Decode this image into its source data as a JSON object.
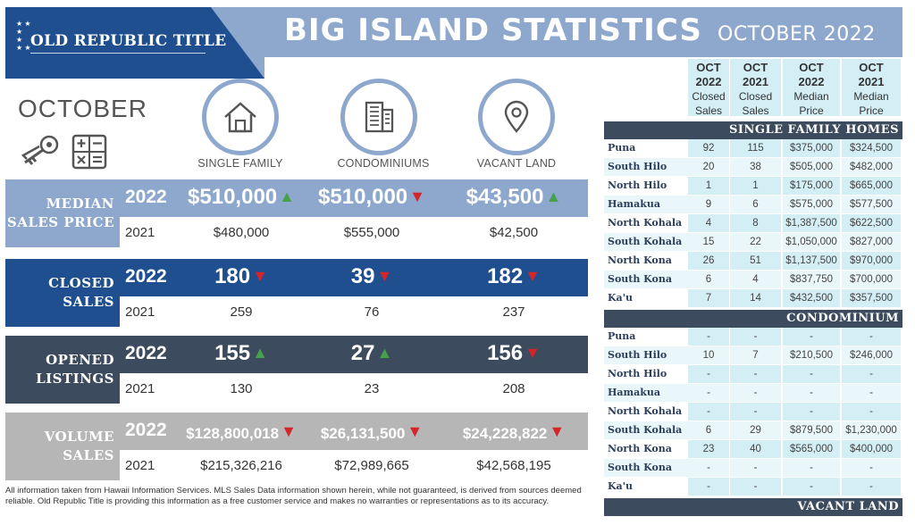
{
  "header": {
    "logo": "OLD REPUBLIC TITLE",
    "title": "BIG ISLAND STATISTICS",
    "subtitle": "OCTOBER 2022",
    "colors": {
      "dark_blue": "#1f4f8e",
      "light_blue": "#8ea8cd",
      "slate": "#3c4b5e",
      "gray": "#b6b6b6"
    }
  },
  "left": {
    "month": "OCTOBER",
    "icons": [
      "keys-icon",
      "calculator-icon"
    ],
    "types": [
      {
        "label": "SINGLE FAMILY",
        "icon": "house-icon"
      },
      {
        "label": "CONDOMINIUMS",
        "icon": "building-icon"
      },
      {
        "label": "VACANT LAND",
        "icon": "map-pin-icon"
      }
    ]
  },
  "sections": [
    {
      "label_1": "MEDIAN",
      "label_2": "SALES PRICE",
      "color": "#8ea8cd",
      "year_cur": "2022",
      "year_prev": "2021",
      "cur": [
        {
          "value": "$510,000",
          "trend": "up"
        },
        {
          "value": "$510,000",
          "trend": "down"
        },
        {
          "value": "$43,500",
          "trend": "up"
        }
      ],
      "prev": [
        "$480,000",
        "$555,000",
        "$42,500"
      ]
    },
    {
      "label_1": "CLOSED",
      "label_2": "SALES",
      "color": "#1f4f8e",
      "year_cur": "2022",
      "year_prev": "2021",
      "cur": [
        {
          "value": "180",
          "trend": "down"
        },
        {
          "value": "39",
          "trend": "down"
        },
        {
          "value": "182",
          "trend": "down"
        }
      ],
      "prev": [
        "259",
        "76",
        "237"
      ]
    },
    {
      "label_1": "OPENED",
      "label_2": "LISTINGS",
      "color": "#3c4b5e",
      "year_cur": "2022",
      "year_prev": "2021",
      "cur": [
        {
          "value": "155",
          "trend": "up"
        },
        {
          "value": "27",
          "trend": "up"
        },
        {
          "value": "156",
          "trend": "down"
        }
      ],
      "prev": [
        "130",
        "23",
        "208"
      ]
    },
    {
      "label_1": "VOLUME",
      "label_2": "SALES",
      "color": "#b6b6b6",
      "year_cur": "2022",
      "year_prev": "2021",
      "cur": [
        {
          "value": "$128,800,018",
          "trend": "down"
        },
        {
          "value": "$26,131,500",
          "trend": "down"
        },
        {
          "value": "$24,228,822",
          "trend": "down"
        }
      ],
      "prev": [
        "$215,326,216",
        "$72,989,665",
        "$42,568,195"
      ]
    }
  ],
  "disclaimer": "All information taken from Hawaii Information Services.  MLS Sales Data information shown herein, while not guaranteed, is derived from sources deemed reliable.  Old Republic Title is providing this information as a free customer service and makes no warranties or representations as to its accuracy.",
  "table": {
    "headers": [
      {
        "l1": "OCT",
        "l2": "2022",
        "l3": "Closed",
        "l4": "Sales"
      },
      {
        "l1": "OCT",
        "l2": "2021",
        "l3": "Closed",
        "l4": "Sales"
      },
      {
        "l1": "OCT",
        "l2": "2022",
        "l3": "Median",
        "l4": "Price"
      },
      {
        "l1": "OCT",
        "l2": "2021",
        "l3": "Median",
        "l4": "Price"
      }
    ],
    "sections": [
      {
        "title": "SINGLE FAMILY HOMES",
        "rows": [
          [
            "Puna",
            "92",
            "115",
            "$375,000",
            "$324,500"
          ],
          [
            "South Hilo",
            "20",
            "38",
            "$505,000",
            "$482,000"
          ],
          [
            "North Hilo",
            "1",
            "1",
            "$175,000",
            "$665,000"
          ],
          [
            "Hamakua",
            "9",
            "6",
            "$575,000",
            "$577,500"
          ],
          [
            "North Kohala",
            "4",
            "8",
            "$1,387,500",
            "$622,500"
          ],
          [
            "South Kohala",
            "15",
            "22",
            "$1,050,000",
            "$827,000"
          ],
          [
            "North Kona",
            "26",
            "51",
            "$1,137,500",
            "$970,000"
          ],
          [
            "South Kona",
            "6",
            "4",
            "$837,750",
            "$700,000"
          ],
          [
            "Ka'u",
            "7",
            "14",
            "$432,500",
            "$357,500"
          ]
        ]
      },
      {
        "title": "CONDOMINIUM",
        "rows": [
          [
            "Puna",
            "-",
            "-",
            "-",
            "-"
          ],
          [
            "South Hilo",
            "10",
            "7",
            "$210,500",
            "$246,000"
          ],
          [
            "North Hilo",
            "-",
            "-",
            "-",
            "-"
          ],
          [
            "Hamakua",
            "-",
            "-",
            "-",
            "-"
          ],
          [
            "North Kohala",
            "-",
            "-",
            "-",
            "-"
          ],
          [
            "South Kohala",
            "6",
            "29",
            "$879,500",
            "$1,230,000"
          ],
          [
            "North Kona",
            "23",
            "40",
            "$565,000",
            "$400,000"
          ],
          [
            "South Kona",
            "-",
            "-",
            "-",
            "-"
          ],
          [
            "Ka'u",
            "-",
            "-",
            "-",
            "-"
          ]
        ]
      },
      {
        "title": "VACANT LAND",
        "rows": []
      }
    ]
  }
}
